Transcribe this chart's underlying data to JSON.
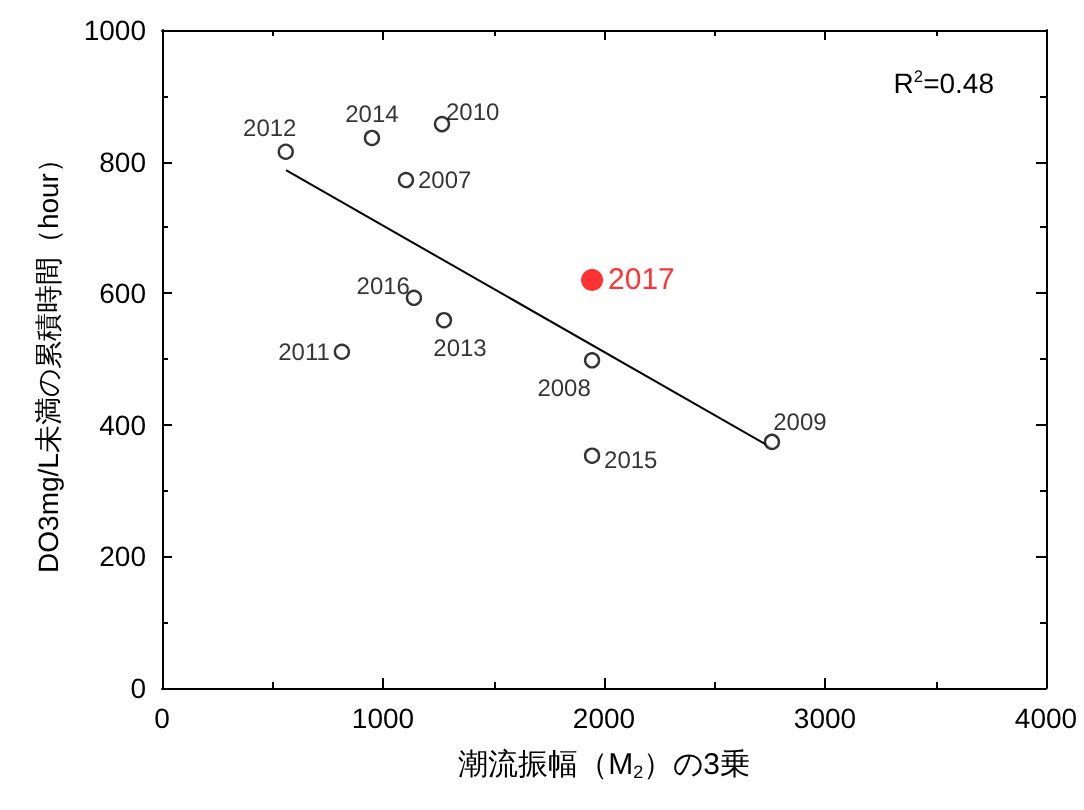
{
  "chart_data": {
    "type": "scatter",
    "xlabel": "潮流振幅（M$_{2}$）の3乗",
    "ylabel": "DO3mg/L未満の累積時間（hour）",
    "xlim": [
      0,
      4000
    ],
    "xticks": [
      0,
      1000,
      2000,
      3000,
      4000
    ],
    "ylim": [
      0,
      1000
    ],
    "yticks": [
      0,
      200,
      400,
      600,
      800,
      1000
    ],
    "grid": false,
    "series": [
      {
        "color": "#000000",
        "marker": "circle",
        "x": [
          1104,
          560,
          950,
          1267,
          814,
          1276,
          1946,
          1946,
          2760,
          1140
        ],
        "values": [
          772,
          815,
          836,
          857,
          511,
          559,
          498,
          353,
          374,
          593
        ]
      },
      {
        "color": "#ff0000",
        "marker": "circle",
        "x": [
          1946
        ],
        "values": [
          620
        ]
      },
      {
        "type": "line",
        "color": "#000000",
        "x": [
          561,
          2760
        ],
        "values": [
          787,
          365
        ]
      }
    ],
    "annotations": [
      {
        "text": "2007",
        "x": 1104,
        "y": 772
      },
      {
        "text": "2012",
        "x": 560,
        "y": 815
      },
      {
        "text": "2014",
        "x": 950,
        "y": 836
      },
      {
        "text": "2010",
        "x": 1267,
        "y": 857
      },
      {
        "text": "2011",
        "x": 814,
        "y": 511
      },
      {
        "text": "2013",
        "x": 1276,
        "y": 559
      },
      {
        "text": "2008",
        "x": 1946,
        "y": 498
      },
      {
        "text": "2015",
        "x": 1946,
        "y": 353
      },
      {
        "text": "2009",
        "x": 2760,
        "y": 374
      },
      {
        "text": "2016",
        "x": 1140,
        "y": 593
      },
      {
        "text": "2017",
        "x": 1946,
        "y": 620
      },
      "R$^{2}$=0.48"
    ]
  }
}
